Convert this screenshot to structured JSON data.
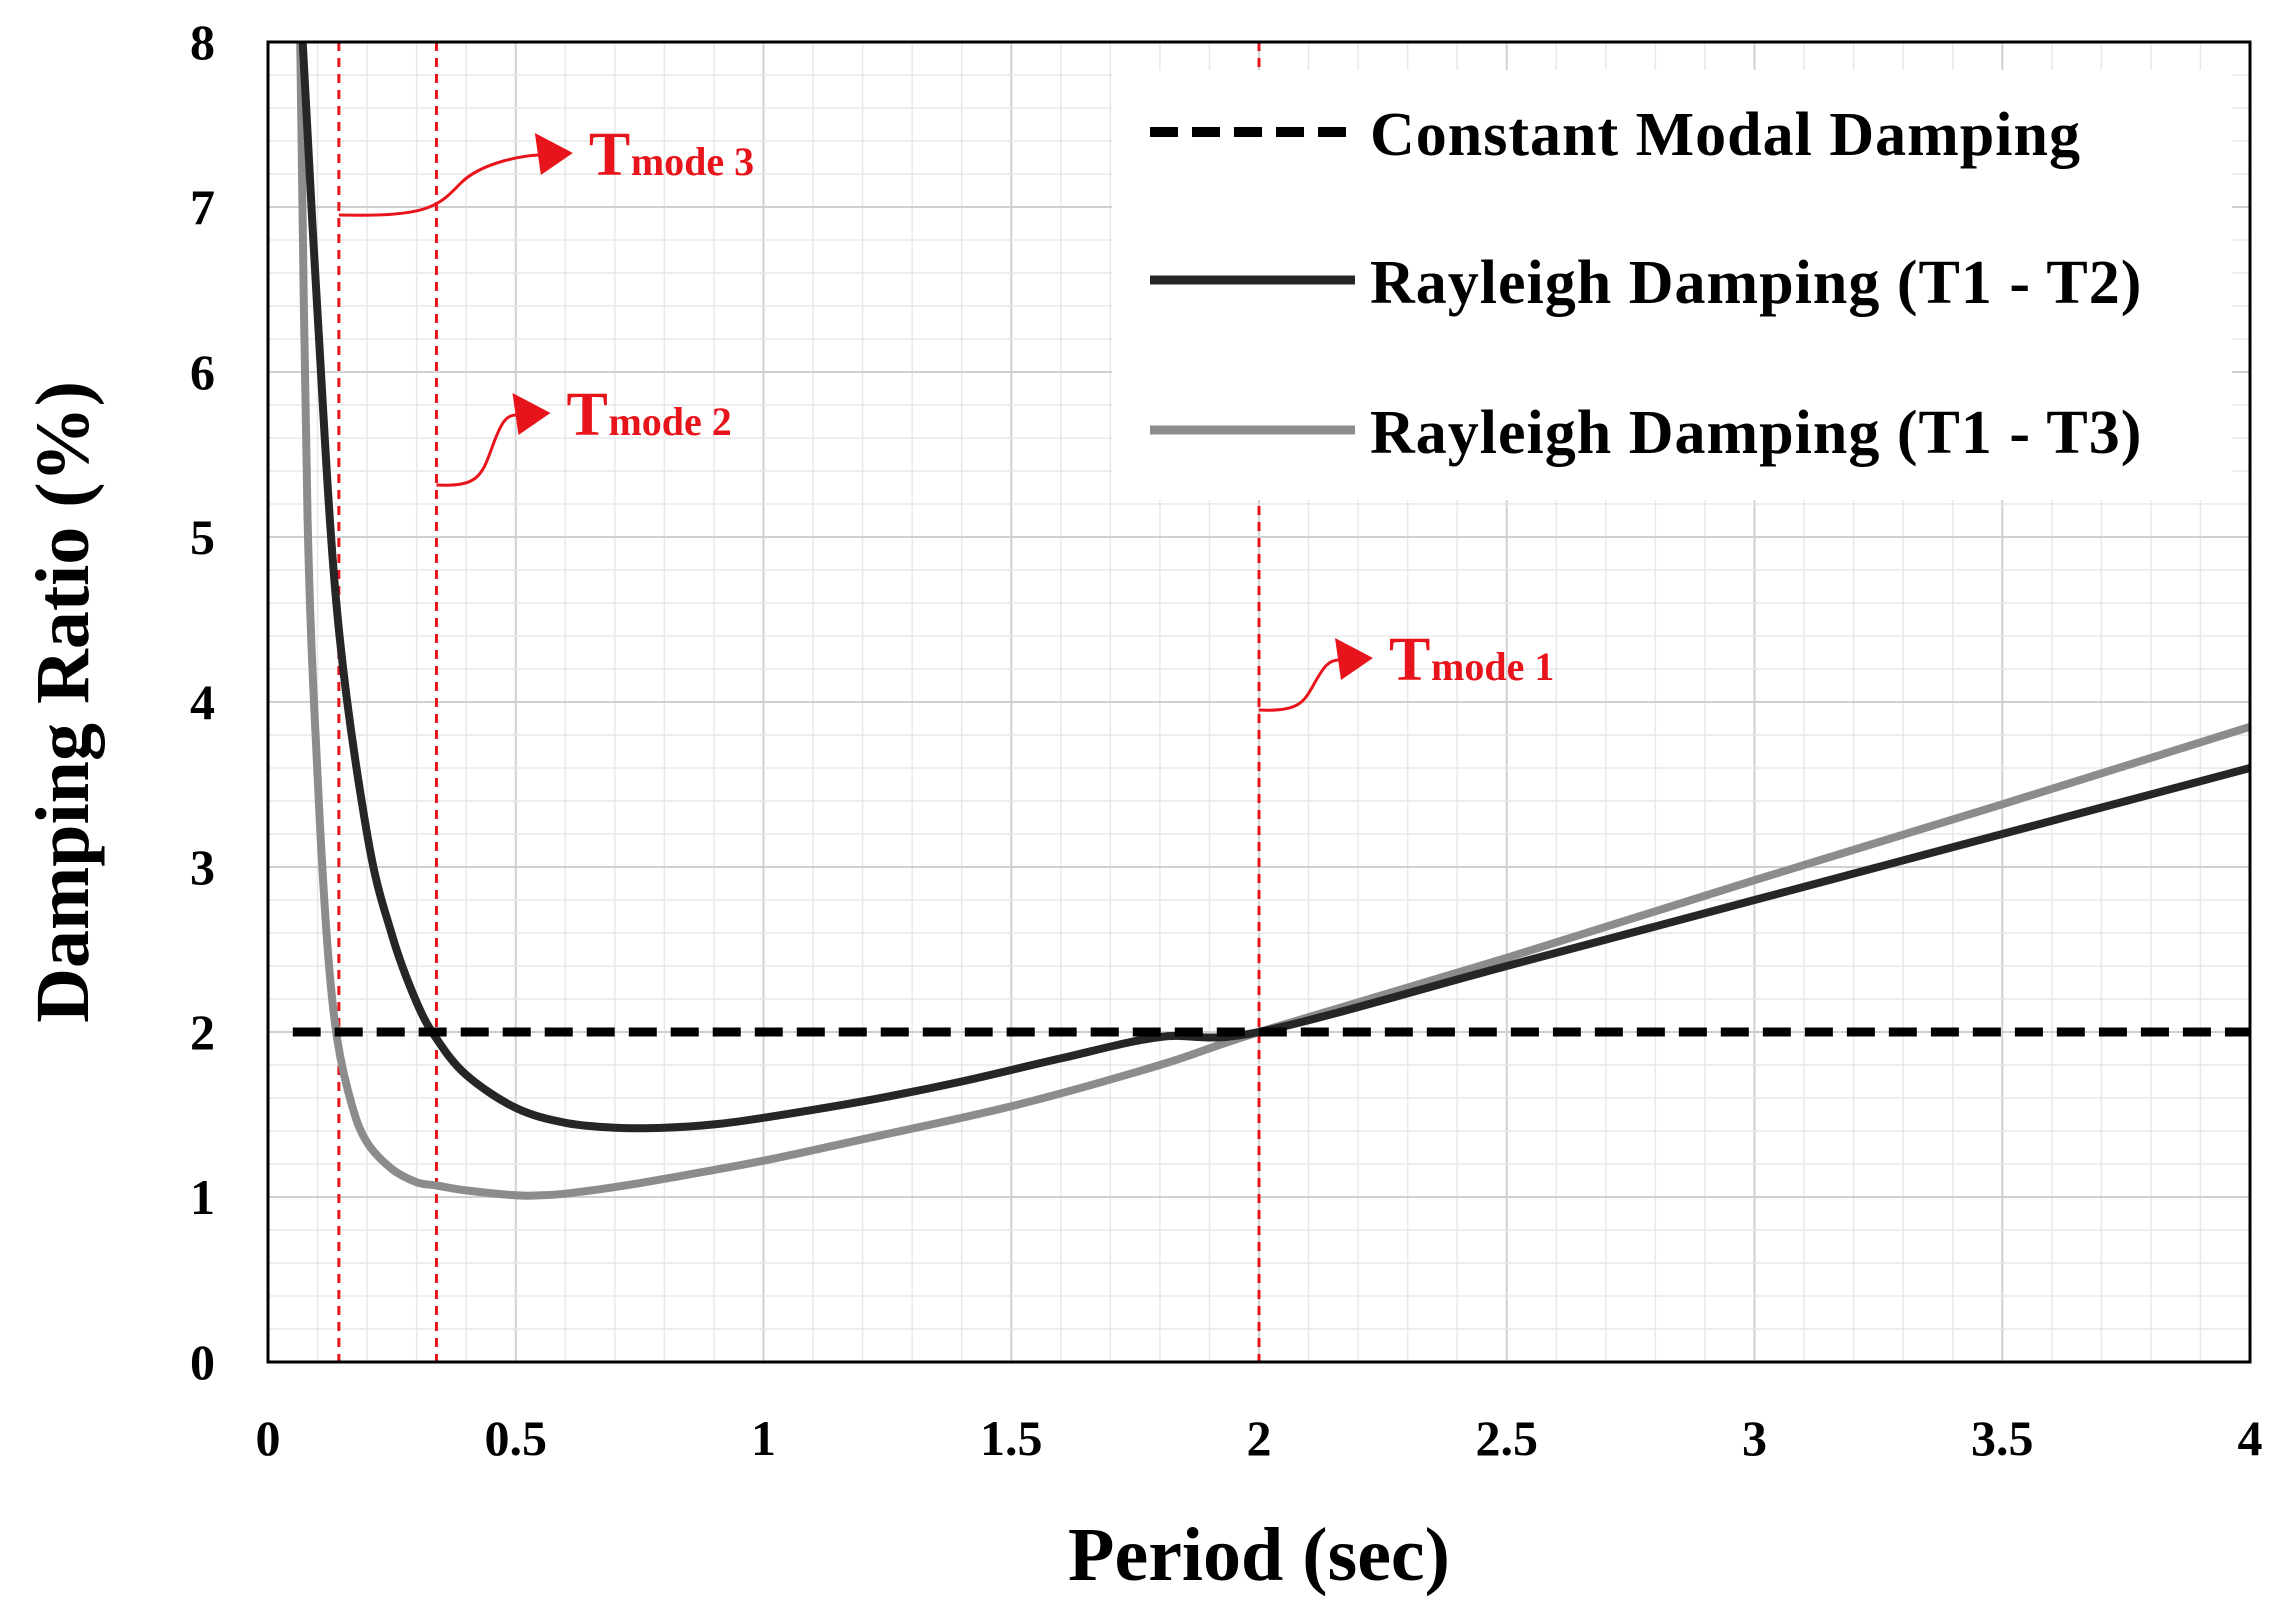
{
  "chart_data": {
    "type": "line",
    "xlabel": "Period (sec)",
    "ylabel": "Damping Ratio (%)",
    "xlim": [
      0,
      4
    ],
    "ylim": [
      0,
      8
    ],
    "x_ticks": [
      "0",
      "0.5",
      "1",
      "1.5",
      "2",
      "2.5",
      "3",
      "3.5",
      "4"
    ],
    "y_ticks": [
      "0",
      "1",
      "2",
      "3",
      "4",
      "5",
      "6",
      "7",
      "8"
    ],
    "grid": true,
    "legend_position": "top-right",
    "series": [
      {
        "name": "Constant Modal Damping",
        "style": "dashed",
        "color": "#000000",
        "x": [
          0.05,
          4.0
        ],
        "y": [
          2.0,
          2.0
        ]
      },
      {
        "name": "Rayleigh Damping (T1 - T2)",
        "style": "solid",
        "color": "#262626",
        "x": [
          0.07,
          0.1,
          0.14,
          0.2,
          0.25,
          0.3,
          0.34,
          0.4,
          0.5,
          0.6,
          0.7,
          0.8,
          0.9,
          1.0,
          1.2,
          1.4,
          1.6,
          1.8,
          2.0,
          2.5,
          3.0,
          3.5,
          4.0
        ],
        "y": [
          8.0,
          6.35,
          4.53,
          3.2,
          2.59,
          2.18,
          1.96,
          1.74,
          1.54,
          1.45,
          1.42,
          1.42,
          1.44,
          1.48,
          1.58,
          1.7,
          1.84,
          1.97,
          2.0,
          2.4,
          2.8,
          3.2,
          3.6
        ]
      },
      {
        "name": "Rayleigh Damping (T1 - T3)",
        "style": "solid",
        "color": "#8c8c8c",
        "x": [
          0.065,
          0.08,
          0.1,
          0.12,
          0.14,
          0.17,
          0.2,
          0.25,
          0.3,
          0.34,
          0.4,
          0.5,
          0.55,
          0.6,
          0.7,
          0.8,
          1.0,
          1.2,
          1.5,
          1.8,
          2.0,
          2.5,
          3.0,
          3.5,
          4.0
        ],
        "y": [
          8.0,
          5.1,
          3.55,
          2.52,
          1.95,
          1.55,
          1.33,
          1.17,
          1.09,
          1.07,
          1.04,
          1.01,
          1.01,
          1.02,
          1.06,
          1.11,
          1.22,
          1.35,
          1.55,
          1.8,
          2.0,
          2.45,
          2.92,
          3.38,
          3.85
        ]
      }
    ],
    "vertical_markers": [
      {
        "x": 0.143,
        "label": "T",
        "sub": "mode 3"
      },
      {
        "x": 0.34,
        "label": "T",
        "sub": "mode 2"
      },
      {
        "x": 2.0,
        "label": "T",
        "sub": "mode 1"
      }
    ],
    "annotation_color": "#e8141c"
  }
}
